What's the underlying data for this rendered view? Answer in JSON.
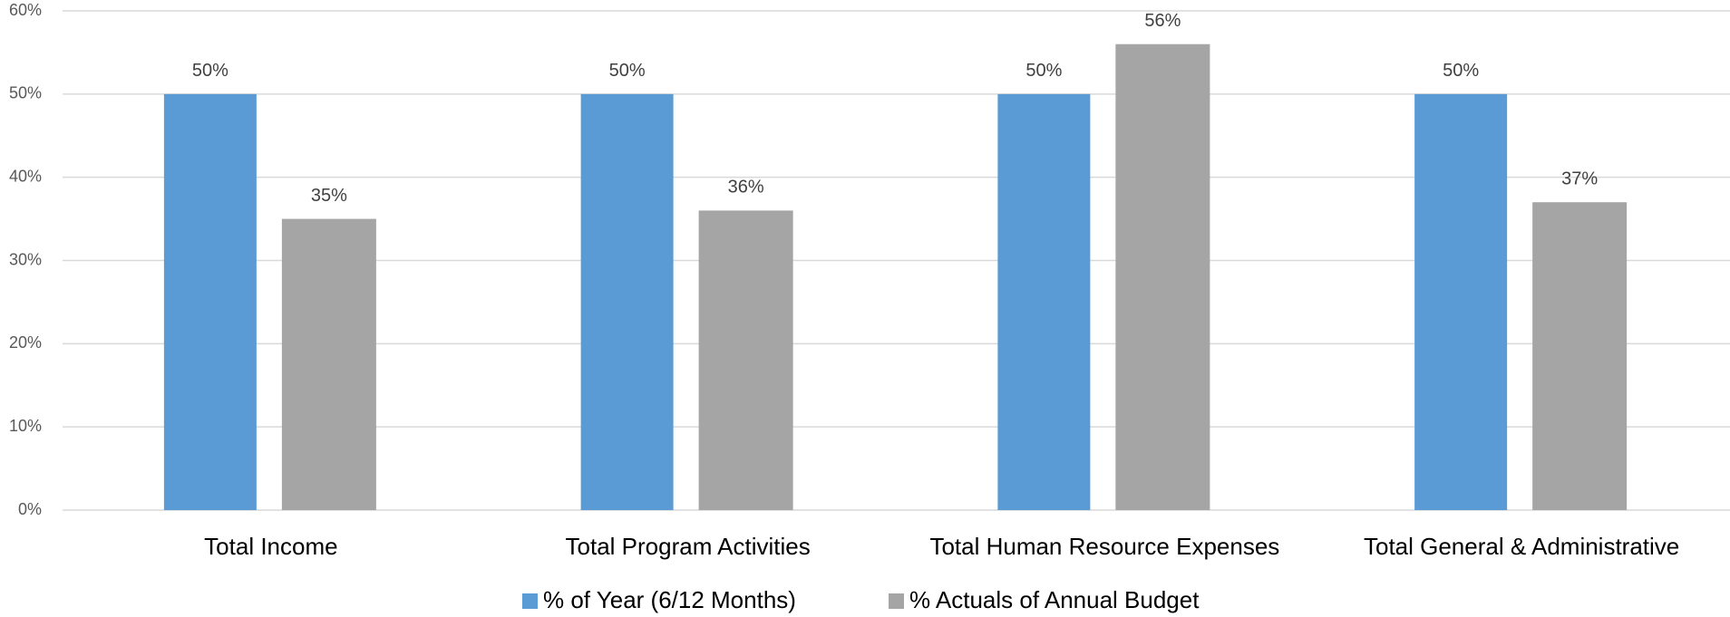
{
  "chart_data": {
    "type": "bar",
    "categories": [
      "Total Income",
      "Total Program Activities",
      "Total Human Resource Expenses",
      "Total General & Administrative"
    ],
    "series": [
      {
        "name": "% of Year (6/12 Months)",
        "color": "#5b9bd5",
        "values": [
          50,
          50,
          50,
          50
        ],
        "value_labels": [
          "50%",
          "50%",
          "50%",
          "50%"
        ]
      },
      {
        "name": "% Actuals of Annual Budget",
        "color": "#a5a5a5",
        "values": [
          35,
          36,
          56,
          37
        ],
        "value_labels": [
          "35%",
          "36%",
          "56%",
          "37%"
        ]
      }
    ],
    "ylim": [
      0,
      60
    ],
    "yticks": [
      {
        "value": 0,
        "label": "0%"
      },
      {
        "value": 10,
        "label": "10%"
      },
      {
        "value": 20,
        "label": "20%"
      },
      {
        "value": 30,
        "label": "30%"
      },
      {
        "value": 40,
        "label": "40%"
      },
      {
        "value": 50,
        "label": "50%"
      },
      {
        "value": 60,
        "label": "60%"
      }
    ],
    "grid": true,
    "legend": "bottom"
  }
}
